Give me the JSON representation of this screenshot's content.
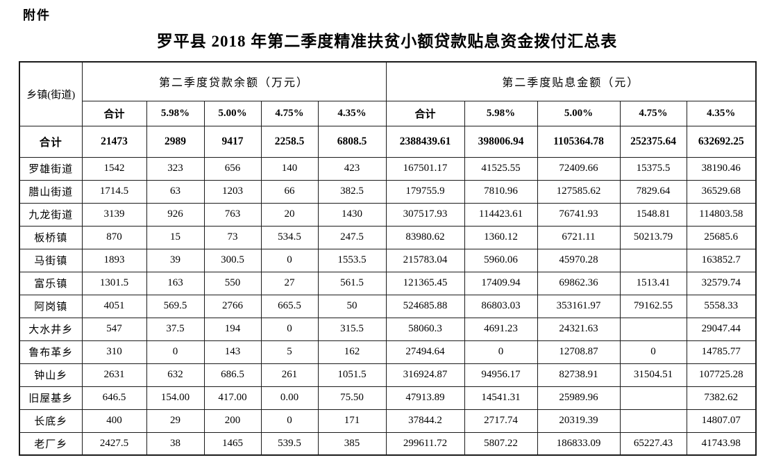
{
  "attachment_label": "附件",
  "title": "罗平县 2018 年第二季度精准扶贫小额贷款贴息资金拨付汇总表",
  "table": {
    "corner_header": "乡镇(街道)",
    "group_headers": [
      "第二季度贷款余额（万元）",
      "第二季度贴息金额（元）"
    ],
    "sub_headers": [
      "合计",
      "5.98%",
      "5.00%",
      "4.75%",
      "4.35%",
      "合计",
      "5.98%",
      "5.00%",
      "4.75%",
      "4.35%"
    ],
    "total_row": {
      "label": "合计",
      "values": [
        "21473",
        "2989",
        "9417",
        "2258.5",
        "6808.5",
        "2388439.61",
        "398006.94",
        "1105364.78",
        "252375.64",
        "632692.25"
      ]
    },
    "rows": [
      {
        "label": "罗雄街道",
        "values": [
          "1542",
          "323",
          "656",
          "140",
          "423",
          "167501.17",
          "41525.55",
          "72409.66",
          "15375.5",
          "38190.46"
        ]
      },
      {
        "label": "腊山街道",
        "values": [
          "1714.5",
          "63",
          "1203",
          "66",
          "382.5",
          "179755.9",
          "7810.96",
          "127585.62",
          "7829.64",
          "36529.68"
        ]
      },
      {
        "label": "九龙街道",
        "values": [
          "3139",
          "926",
          "763",
          "20",
          "1430",
          "307517.93",
          "114423.61",
          "76741.93",
          "1548.81",
          "114803.58"
        ]
      },
      {
        "label": "板桥镇",
        "values": [
          "870",
          "15",
          "73",
          "534.5",
          "247.5",
          "83980.62",
          "1360.12",
          "6721.11",
          "50213.79",
          "25685.6"
        ]
      },
      {
        "label": "马街镇",
        "values": [
          "1893",
          "39",
          "300.5",
          "0",
          "1553.5",
          "215783.04",
          "5960.06",
          "45970.28",
          "",
          "163852.7"
        ]
      },
      {
        "label": "富乐镇",
        "values": [
          "1301.5",
          "163",
          "550",
          "27",
          "561.5",
          "121365.45",
          "17409.94",
          "69862.36",
          "1513.41",
          "32579.74"
        ]
      },
      {
        "label": "阿岗镇",
        "values": [
          "4051",
          "569.5",
          "2766",
          "665.5",
          "50",
          "524685.88",
          "86803.03",
          "353161.97",
          "79162.55",
          "5558.33"
        ]
      },
      {
        "label": "大水井乡",
        "values": [
          "547",
          "37.5",
          "194",
          "0",
          "315.5",
          "58060.3",
          "4691.23",
          "24321.63",
          "",
          "29047.44"
        ]
      },
      {
        "label": "鲁布革乡",
        "values": [
          "310",
          "0",
          "143",
          "5",
          "162",
          "27494.64",
          "0",
          "12708.87",
          "0",
          "14785.77"
        ]
      },
      {
        "label": "钟山乡",
        "values": [
          "2631",
          "632",
          "686.5",
          "261",
          "1051.5",
          "316924.87",
          "94956.17",
          "82738.91",
          "31504.51",
          "107725.28"
        ]
      },
      {
        "label": "旧屋基乡",
        "values": [
          "646.5",
          "154.00",
          "417.00",
          "0.00",
          "75.50",
          "47913.89",
          "14541.31",
          "25989.96",
          "",
          "7382.62"
        ]
      },
      {
        "label": "长底乡",
        "values": [
          "400",
          "29",
          "200",
          "0",
          "171",
          "37844.2",
          "2717.74",
          "20319.39",
          "",
          "14807.07"
        ]
      },
      {
        "label": "老厂乡",
        "values": [
          "2427.5",
          "38",
          "1465",
          "539.5",
          "385",
          "299611.72",
          "5807.22",
          "186833.09",
          "65227.43",
          "41743.98"
        ]
      }
    ]
  }
}
